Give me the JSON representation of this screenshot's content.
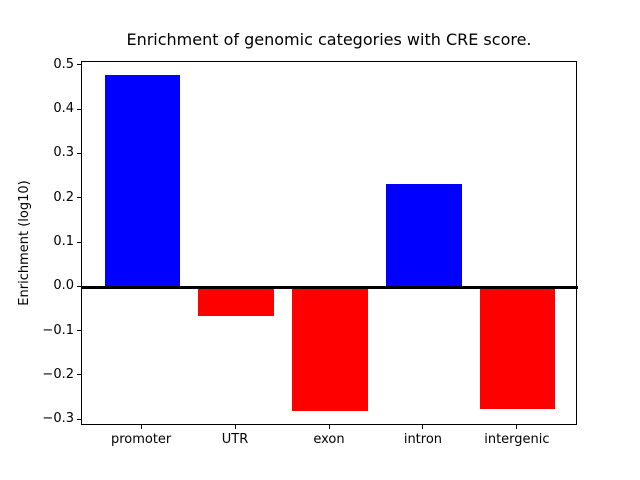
{
  "chart_data": {
    "type": "bar",
    "title": "Enrichment of genomic categories with CRE score.",
    "xlabel": "",
    "ylabel": "Enrichment (log10)",
    "categories": [
      "promoter",
      "UTR",
      "exon",
      "intron",
      "intergenic"
    ],
    "values": [
      0.48,
      -0.065,
      -0.28,
      0.233,
      -0.276
    ],
    "bar_colors": [
      "#0000ff",
      "#ff0000",
      "#ff0000",
      "#0000ff",
      "#ff0000"
    ],
    "positive_color": "#0000ff",
    "negative_color": "#ff0000",
    "zero_line": true,
    "zero_line_color": "#000000",
    "grid": false,
    "legend": null,
    "bar_width": 0.8,
    "xlim": [
      -0.64,
      4.64
    ],
    "ylim": [
      -0.3135,
      0.509
    ],
    "yticks": {
      "values": [
        0.5,
        0.4,
        0.3,
        0.2,
        0.1,
        0.0,
        -0.1,
        -0.2,
        -0.3
      ],
      "labels": [
        "0.5",
        "0.4",
        "0.3",
        "0.2",
        "0.1",
        "0.0",
        "−0.1",
        "−0.2",
        "−0.3"
      ]
    }
  }
}
